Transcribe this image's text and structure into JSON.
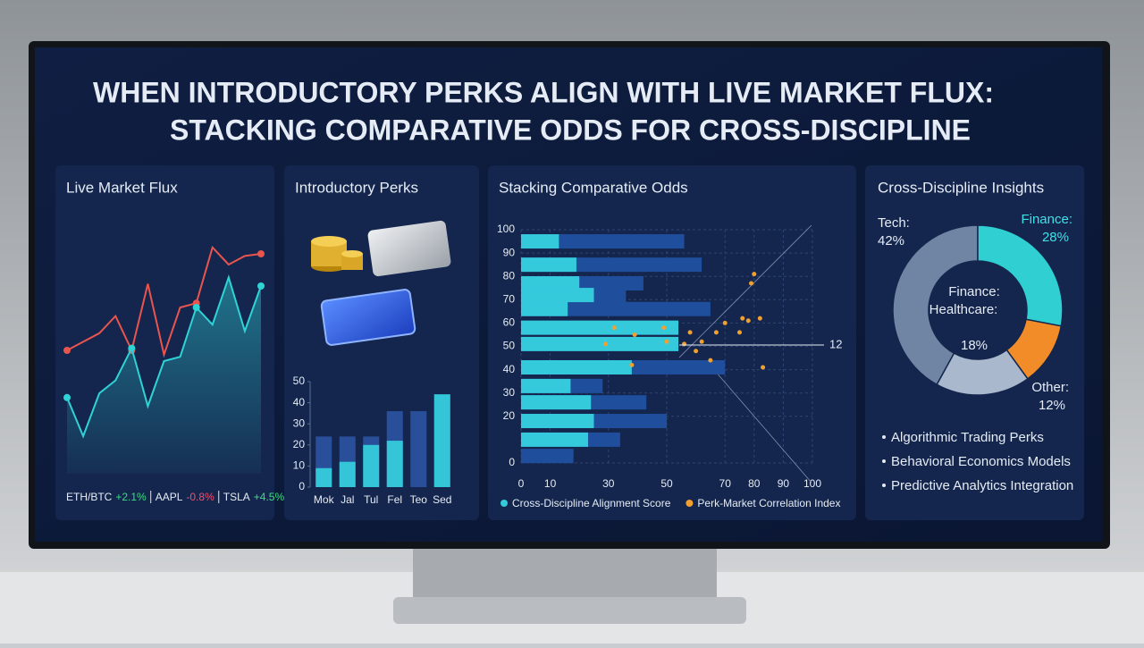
{
  "title": [
    "WHEN INTRODUCTORY PERKS ALIGN WITH LIVE MARKET FLUX:",
    "STACKING COMPARATIVE ODDS FOR CROSS-DISCIPLINE"
  ],
  "chart_data": [
    {
      "type": "line",
      "title": "Live Market Flux",
      "ylim": [
        0,
        100
      ],
      "series": [
        {
          "color": "#e8554e",
          "values": [
            45,
            49,
            53,
            61,
            45,
            76,
            43,
            65,
            67,
            93,
            85,
            89,
            90
          ]
        },
        {
          "color": "#2fd3d6",
          "values": [
            23,
            5,
            25,
            31,
            46,
            19,
            40,
            42,
            65,
            57,
            79,
            54,
            75
          ]
        }
      ]
    },
    {
      "type": "bar",
      "title": "Introductory Perks",
      "categories": [
        "Mok",
        "Jal",
        "Tul",
        "Fel",
        "Teo",
        "Sed"
      ],
      "ylim": [
        0,
        50
      ],
      "yticks": [
        0,
        10,
        20,
        30,
        40,
        50
      ],
      "series": [
        {
          "color": "#2a4f9a",
          "values": [
            24,
            24,
            24,
            36,
            36,
            44
          ]
        },
        {
          "color": "#34c6d8",
          "values": [
            9,
            12,
            20,
            22,
            null,
            44
          ]
        }
      ]
    },
    {
      "type": "barh",
      "title": "Stacking Comparative Odds",
      "xlim": [
        0,
        100
      ],
      "xticks": [
        0,
        10,
        30,
        50,
        70,
        80,
        90,
        100
      ],
      "ylim": [
        0,
        100
      ],
      "yticks": [
        100,
        90,
        80,
        70,
        60,
        50,
        40,
        30,
        20,
        0
      ],
      "grid": true,
      "annotation": "12",
      "y": [
        95,
        85,
        77,
        72,
        66,
        58,
        51,
        41,
        33,
        26,
        18,
        10,
        3
      ],
      "series": [
        {
          "color": "#1f4e9c",
          "values": [
            56,
            62,
            42,
            36,
            65,
            null,
            null,
            70,
            28,
            43,
            50,
            34,
            18
          ]
        },
        {
          "name": "Cross-Discipline Alignment Score",
          "color": "#35c9dc",
          "values": [
            13,
            19,
            20,
            25,
            16,
            54,
            54,
            38,
            17,
            24,
            25,
            23,
            null
          ]
        },
        {
          "name": "Perk-Market Correlation Index",
          "type": "scatter",
          "color": "#f0a030",
          "x": [
            32,
            39,
            49,
            50,
            29,
            56,
            58,
            62,
            67,
            70,
            75,
            78,
            82,
            79,
            80,
            76,
            65,
            38,
            83,
            60
          ],
          "values": [
            58,
            55,
            58,
            52,
            51,
            51,
            56,
            52,
            56,
            60,
            56,
            61,
            62,
            77,
            81,
            62,
            44,
            42,
            41,
            48
          ]
        }
      ]
    },
    {
      "type": "pie",
      "title": "Cross-Discipline Insights",
      "categories": [
        "Tech:",
        "Finance:",
        "Other:",
        "Healthcare:"
      ],
      "values": [
        42,
        28,
        12,
        18
      ],
      "value_labels": [
        "42%",
        "28%",
        "12%",
        "18%"
      ],
      "colors": [
        "#6f85a3",
        "#2fcfd2",
        "#f28c28",
        "#a9b8cc"
      ],
      "center_label": "Finance:"
    }
  ],
  "ticker": [
    {
      "symbol": "ETH/BTC",
      "change": "+2.1%",
      "color": "#3ddc84"
    },
    {
      "symbol": "AAPL",
      "change": "-0.8%",
      "color": "#f0506e"
    },
    {
      "symbol": "TSLA",
      "change": "+4.5%",
      "color": "#3ddc84"
    }
  ],
  "insights": [
    "Algorithmic Trading Perks",
    "Behavioral Economics Models",
    "Predictive Analytics Integration"
  ]
}
